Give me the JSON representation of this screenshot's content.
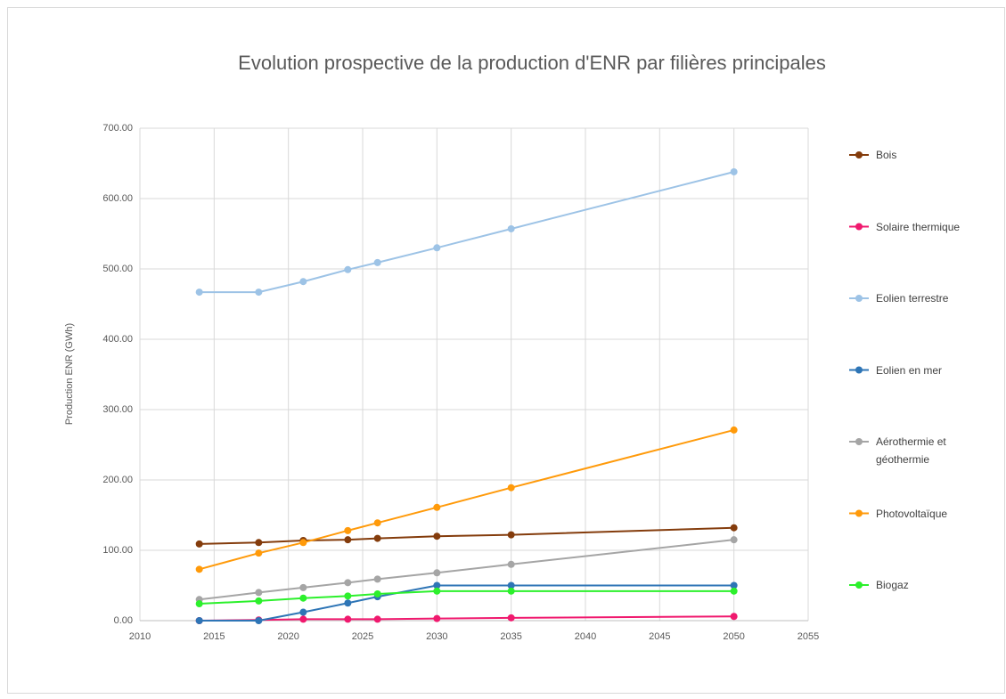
{
  "chart_data": {
    "type": "line",
    "title": "Evolution prospective de la production d'ENR par filières principales",
    "y_label": "Production ENR (GWh)",
    "x": [
      2014,
      2018,
      2021,
      2024,
      2026,
      2030,
      2035,
      2050
    ],
    "xlim": [
      2010,
      2055
    ],
    "xticks": [
      2010,
      2015,
      2020,
      2025,
      2030,
      2035,
      2040,
      2045,
      2050,
      2055
    ],
    "ylim": [
      0,
      700
    ],
    "yticks": [
      {
        "value": 0,
        "label": "0.00"
      },
      {
        "value": 100,
        "label": "100.00"
      },
      {
        "value": 200,
        "label": "200.00"
      },
      {
        "value": 300,
        "label": "300.00"
      },
      {
        "value": 400,
        "label": "400.00"
      },
      {
        "value": 500,
        "label": "500.00"
      },
      {
        "value": 600,
        "label": "600.00"
      },
      {
        "value": 700,
        "label": "700.00"
      }
    ],
    "grid": true,
    "legend": "right",
    "series": [
      {
        "name": "Bois",
        "color": "#843c0c",
        "values": [
          109,
          111,
          114,
          115,
          117,
          120,
          122,
          132
        ]
      },
      {
        "name": "Solaire thermique",
        "color": "#f0196e",
        "values": [
          0,
          1,
          2,
          2,
          2,
          3,
          4,
          6
        ]
      },
      {
        "name": "Eolien terrestre",
        "color": "#9dc3e6",
        "values": [
          467,
          467,
          482,
          499,
          509,
          530,
          557,
          638
        ]
      },
      {
        "name": "Eolien en mer",
        "color": "#2e75b6",
        "values": [
          0,
          0,
          12,
          25,
          34,
          50,
          50,
          50
        ]
      },
      {
        "name": "Aérothermie et géothermie",
        "color": "#a5a5a5",
        "values": [
          30,
          40,
          47,
          54,
          59,
          68,
          80,
          115
        ]
      },
      {
        "name": "Photovoltaïque",
        "color": "#ff9a0a",
        "values": [
          73,
          96,
          111,
          128,
          139,
          161,
          189,
          271
        ]
      },
      {
        "name": "Biogaz",
        "color": "#2cf02c",
        "values": [
          24,
          28,
          32,
          35,
          38,
          42,
          42,
          42
        ]
      }
    ]
  }
}
